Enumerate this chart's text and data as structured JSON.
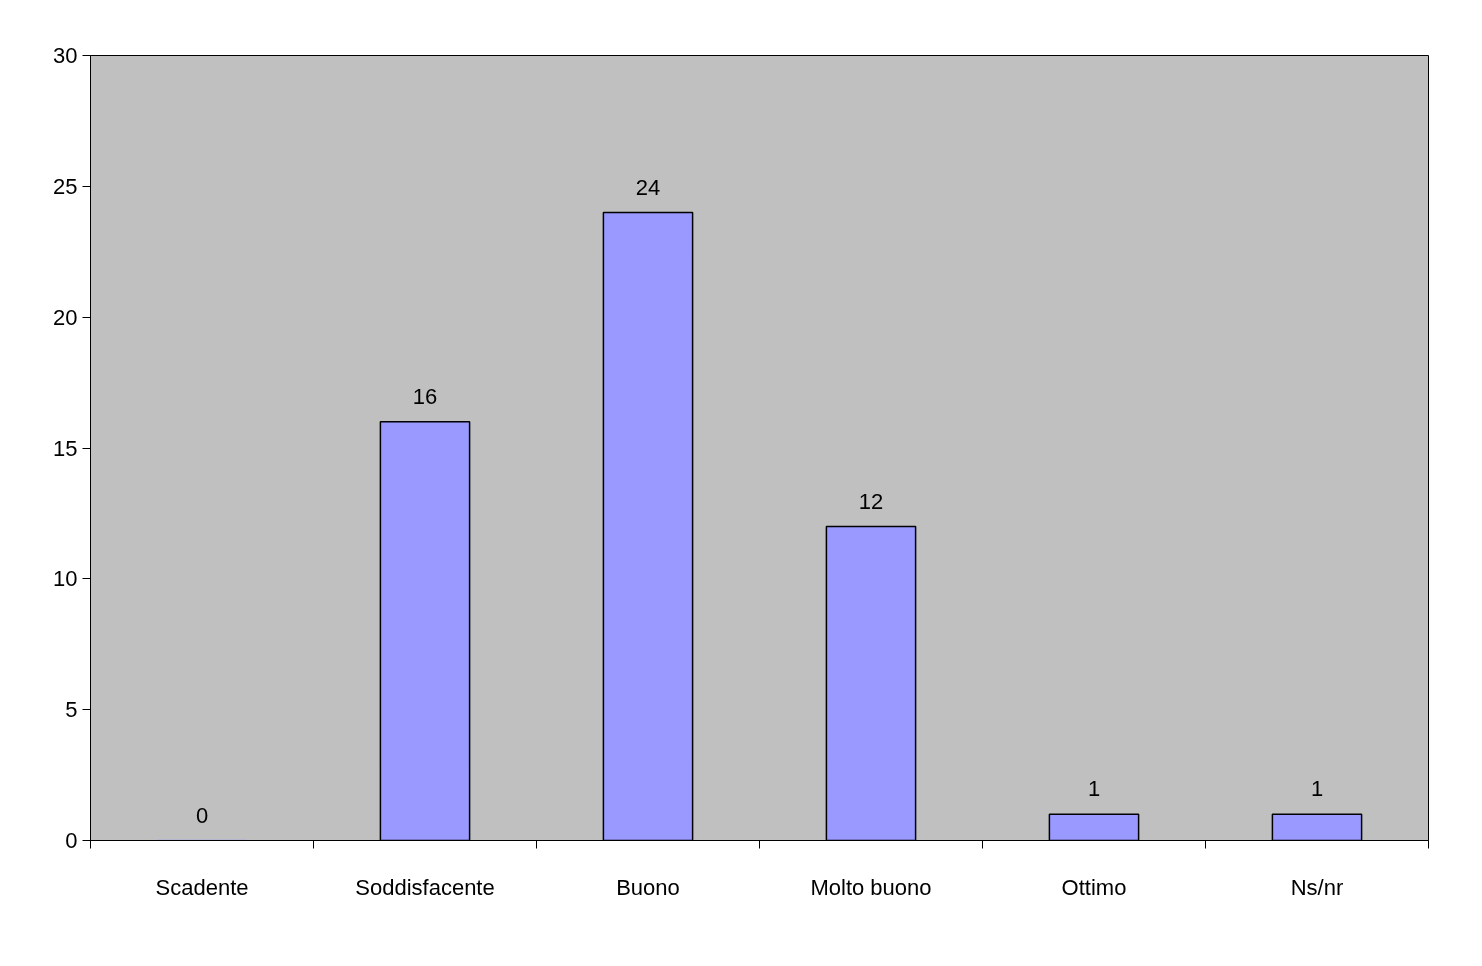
{
  "chart_data": {
    "type": "bar",
    "categories": [
      "Scadente",
      "Soddisfacente",
      "Buono",
      "Molto buono",
      "Ottimo",
      "Ns/nr"
    ],
    "values": [
      0,
      16,
      24,
      12,
      1,
      1
    ],
    "color": "#9999ff",
    "ylim": [
      0,
      30
    ],
    "yticks": [
      0,
      5,
      10,
      15,
      20,
      25,
      30
    ],
    "grid": false,
    "data_labels": true
  }
}
